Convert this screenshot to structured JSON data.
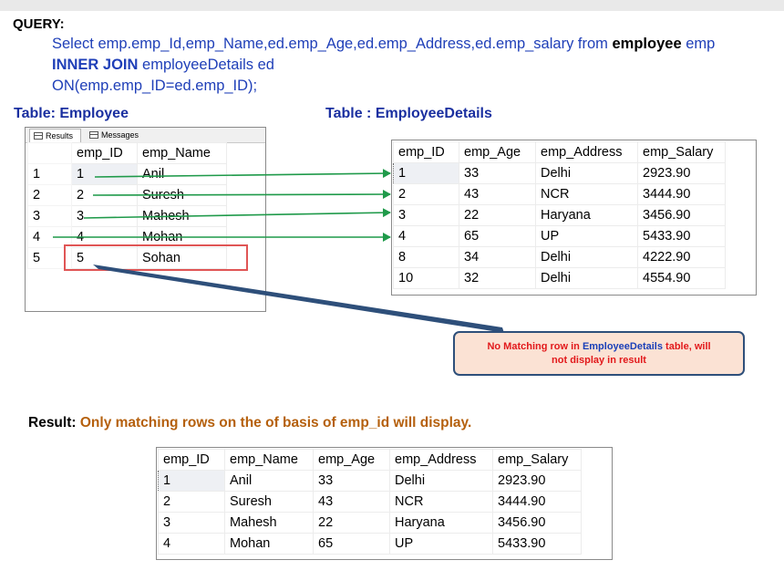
{
  "query": {
    "label": "QUERY:",
    "line1_a": "Select emp.emp_Id,emp_Name,ed.emp_Age,ed.emp_Address,ed.emp_salary from ",
    "line1_b": "employee",
    "line1_c": " emp",
    "line2_a": "INNER JOIN",
    "line2_b": " employeeDetails ed",
    "line3": "ON(emp.emp_ID=ed.emp_ID);"
  },
  "employee_table": {
    "caption": "Table: Employee",
    "tabs": {
      "results": "Results",
      "messages": "Messages"
    },
    "columns": [
      "emp_ID",
      "emp_Name"
    ],
    "rows": [
      {
        "n": "1",
        "id": "1",
        "name": "Anil"
      },
      {
        "n": "2",
        "id": "2",
        "name": "Suresh"
      },
      {
        "n": "3",
        "id": "3",
        "name": "Mahesh"
      },
      {
        "n": "4",
        "id": "4",
        "name": "Mohan"
      },
      {
        "n": "5",
        "id": "5",
        "name": "Sohan"
      }
    ]
  },
  "details_table": {
    "caption": "Table : EmployeeDetails",
    "columns": [
      "emp_ID",
      "emp_Age",
      "emp_Address",
      "emp_Salary"
    ],
    "rows": [
      {
        "id": "1",
        "age": "33",
        "address": "Delhi",
        "salary": "2923.90"
      },
      {
        "id": "2",
        "age": "43",
        "address": "NCR",
        "salary": "3444.90"
      },
      {
        "id": "3",
        "age": "22",
        "address": "Haryana",
        "salary": "3456.90"
      },
      {
        "id": "4",
        "age": "65",
        "address": "UP",
        "salary": "5433.90"
      },
      {
        "id": "8",
        "age": "34",
        "address": "Delhi",
        "salary": "4222.90"
      },
      {
        "id": "10",
        "age": "32",
        "address": "Delhi",
        "salary": "4554.90"
      }
    ]
  },
  "callout": {
    "part1": "No Matching row in ",
    "part2": "EmployeeDetails",
    "part3": " table, will",
    "part4": "not display in result"
  },
  "result": {
    "label": "Result:",
    "text": "Only matching rows on the of basis of emp_id will display.",
    "columns": [
      "emp_ID",
      "emp_Name",
      "emp_Age",
      "emp_Address",
      "emp_Salary"
    ],
    "rows": [
      {
        "id": "1",
        "name": "Anil",
        "age": "33",
        "address": "Delhi",
        "salary": "2923.90"
      },
      {
        "id": "2",
        "name": "Suresh",
        "age": "43",
        "address": "NCR",
        "salary": "3444.90"
      },
      {
        "id": "3",
        "name": "Mahesh",
        "age": "22",
        "address": "Haryana",
        "salary": "3456.90"
      },
      {
        "id": "4",
        "name": "Mohan",
        "age": "65",
        "address": "UP",
        "salary": "5433.90"
      }
    ]
  },
  "colors": {
    "query_blue": "#1f3fb8",
    "caption_blue": "#1a2fa0",
    "arrow_green": "#1f9a4a",
    "pointer_navy": "#2e4f7a",
    "callout_fill": "#fbe2d4",
    "result_orange": "#b5600d",
    "highlight_red": "#e05555"
  }
}
